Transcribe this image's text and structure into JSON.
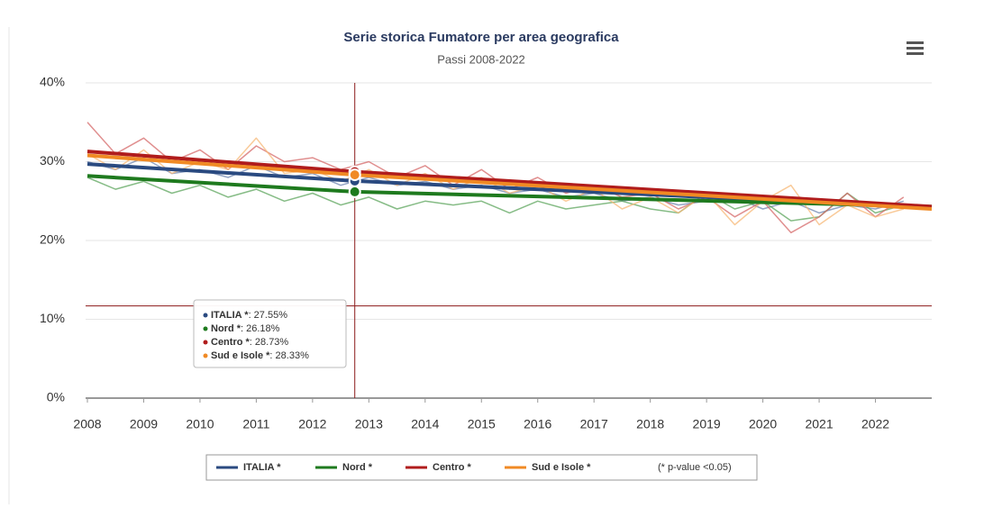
{
  "chart_data": {
    "type": "line",
    "title": "Serie storica Fumatore per area geografica",
    "subtitle": "Passi 2008-2022",
    "xlim": [
      2008,
      2023
    ],
    "xticks": [
      2008,
      2009,
      2010,
      2011,
      2012,
      2013,
      2014,
      2015,
      2016,
      2017,
      2018,
      2019,
      2020,
      2021,
      2022
    ],
    "ylim": [
      0,
      40
    ],
    "yticks": [
      {
        "value": 0,
        "label": "0%"
      },
      {
        "value": 10,
        "label": "10%"
      },
      {
        "value": 20,
        "label": "20%"
      },
      {
        "value": 30,
        "label": "30%"
      },
      {
        "value": 40,
        "label": "40%"
      }
    ],
    "grid": true,
    "legend": "bottom",
    "legend_note": "(* p-value <0.05)",
    "series": [
      {
        "name": "ITALIA *",
        "color": "#2a4a80",
        "x": [
          2008,
          2012.75,
          2023
        ],
        "values": [
          29.7,
          27.55,
          24.2
        ]
      },
      {
        "name": "Nord *",
        "color": "#1e7a1e",
        "x": [
          2008,
          2012.75,
          2023
        ],
        "values": [
          28.2,
          26.18,
          24.3
        ]
      },
      {
        "name": "Centro *",
        "color": "#b01c1c",
        "x": [
          2008,
          2012.75,
          2023
        ],
        "values": [
          31.3,
          28.73,
          24.3
        ]
      },
      {
        "name": "Sud e Isole *",
        "color": "#f08a24",
        "x": [
          2008,
          2012.75,
          2023
        ],
        "values": [
          30.8,
          28.33,
          24.0
        ]
      }
    ],
    "raw_series": [
      {
        "color": "#6f86b0",
        "x": [
          2008,
          2008.5,
          2009,
          2009.5,
          2010,
          2010.5,
          2011,
          2011.5,
          2012,
          2012.5,
          2013,
          2013.5,
          2014,
          2014.5,
          2015,
          2015.5,
          2016,
          2016.5,
          2017,
          2017.5,
          2018,
          2018.5,
          2019,
          2019.5,
          2020,
          2020.5,
          2021,
          2021.5,
          2022,
          2022.5
        ],
        "values": [
          30,
          29,
          30.5,
          28.5,
          29,
          28,
          29.5,
          28,
          28.5,
          27,
          28,
          27,
          27.5,
          26.5,
          27,
          26,
          26.5,
          25.5,
          26,
          25,
          25.5,
          24.5,
          25,
          25.5,
          24,
          25,
          23.5,
          24.5,
          24,
          25
        ]
      },
      {
        "color": "#5ea65e",
        "x": [
          2008,
          2008.5,
          2009,
          2009.5,
          2010,
          2010.5,
          2011,
          2011.5,
          2012,
          2012.5,
          2013,
          2013.5,
          2014,
          2014.5,
          2015,
          2015.5,
          2016,
          2016.5,
          2017,
          2017.5,
          2018,
          2018.5,
          2019,
          2019.5,
          2020,
          2020.5,
          2021,
          2021.5,
          2022,
          2022.5
        ],
        "values": [
          28,
          26.5,
          27.5,
          26,
          27,
          25.5,
          26.5,
          25,
          26,
          24.5,
          25.5,
          24,
          25,
          24.5,
          25,
          23.5,
          25,
          24,
          24.5,
          25,
          24,
          23.5,
          26,
          24,
          25,
          22.5,
          23,
          26,
          23.5,
          24.5
        ]
      },
      {
        "color": "#d66a6a",
        "x": [
          2008,
          2008.5,
          2009,
          2009.5,
          2010,
          2010.5,
          2011,
          2011.5,
          2012,
          2012.5,
          2013,
          2013.5,
          2014,
          2014.5,
          2015,
          2015.5,
          2016,
          2016.5,
          2017,
          2017.5,
          2018,
          2018.5,
          2019,
          2019.5,
          2020,
          2020.5,
          2021,
          2021.5,
          2022,
          2022.5
        ],
        "values": [
          35,
          31,
          33,
          30,
          31.5,
          29,
          32,
          30,
          30.5,
          29,
          30,
          28,
          29.5,
          27,
          29,
          26.5,
          28,
          26,
          27,
          25.5,
          26,
          24,
          25.5,
          23,
          25,
          21,
          23,
          26,
          23,
          25.5
        ]
      },
      {
        "color": "#f7b877",
        "x": [
          2008,
          2008.5,
          2009,
          2009.5,
          2010,
          2010.5,
          2011,
          2011.5,
          2012,
          2012.5,
          2013,
          2013.5,
          2014,
          2014.5,
          2015,
          2015.5,
          2016,
          2016.5,
          2017,
          2017.5,
          2018,
          2018.5,
          2019,
          2019.5,
          2020,
          2020.5,
          2021,
          2021.5,
          2022,
          2022.5
        ],
        "values": [
          31,
          29,
          31.5,
          28.5,
          30,
          29,
          33,
          28.5,
          29,
          27.5,
          29,
          27,
          28.5,
          26.5,
          28,
          26,
          27,
          25,
          26.5,
          24,
          25.5,
          23.5,
          26,
          22,
          25,
          27,
          22,
          24.5,
          23,
          24
        ]
      }
    ],
    "crosshair": {
      "x": 2012.75,
      "y": 11.7
    },
    "tooltip": {
      "separator": ":",
      "values": [
        27.55,
        26.18,
        28.73,
        28.33
      ],
      "value_labels": [
        " 27.55%",
        " 26.18%",
        " 28.73%",
        " 28.33%"
      ]
    }
  }
}
